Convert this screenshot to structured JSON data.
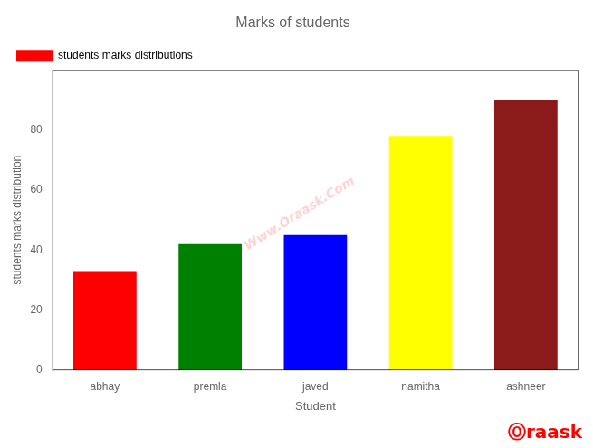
{
  "chart_data": {
    "type": "bar",
    "title": "Marks of students",
    "x_label": "Student",
    "y_label": "students marks distribution",
    "categories": [
      "abhay",
      "premla",
      "javed",
      "namitha",
      "ashneer"
    ],
    "series": [
      {
        "name": "students marks distributions",
        "color": "red",
        "colors": [
          "red",
          "green",
          "blue",
          "yellow",
          "#8B1A1A"
        ],
        "values": [
          33,
          42,
          45,
          78,
          90
        ]
      }
    ],
    "ylim": [
      0,
      100
    ],
    "yticks": [
      0,
      20,
      40,
      60,
      80
    ],
    "grid": false,
    "legend": "upper left",
    "annotations": [
      {
        "text": "Www.Oraask.Com",
        "color": "#ffb6b6"
      },
      {
        "text": "Ⓞraask",
        "color": "red"
      }
    ]
  }
}
